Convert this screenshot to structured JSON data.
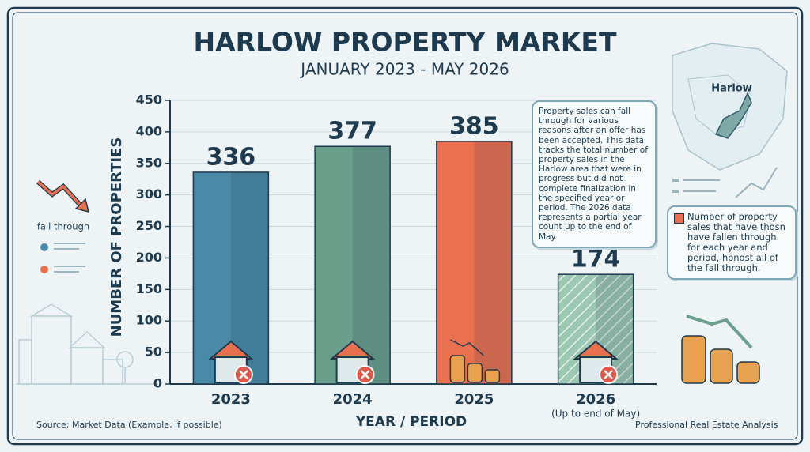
{
  "chart_data": {
    "type": "bar",
    "title": "HARLOW PROPERTY MARKET",
    "subtitle": "JANUARY 2023 - MAY 2026",
    "y_label": "NUMBER OF PROPERTIES",
    "x_label": "YEAR / PERIOD",
    "categories": [
      "2023",
      "2024",
      "2025",
      "2026"
    ],
    "category_notes": {
      "3": "(Up to end of May)"
    },
    "values": [
      336,
      377,
      385,
      174
    ],
    "colors": [
      "#4a8aa8",
      "#6a9f8c",
      "#ea7150",
      "#9cc7b2"
    ],
    "hatched": [
      false,
      false,
      false,
      true
    ],
    "ylim": [
      0,
      450
    ],
    "yticks": [
      0,
      50,
      100,
      150,
      200,
      250,
      300,
      350,
      400,
      450
    ],
    "grid": true,
    "annotations": {
      "note": "Property sales can fall through for various reasons after an offer has been accepted. This data tracks the total number of property sales in the Harlow area that were in progress but did not complete finalization in the specified year or period. The 2026 data represents a partial year count up to the end of May.",
      "icon_label": "fall through",
      "legend": "Number of property sales that have thosn have fallen through for each year and period, honost all of the fall through.",
      "map_label": "Harlow",
      "source": "Source: Market Data (Example, if possible)",
      "credit": "Professional Real Estate Analysis"
    }
  }
}
